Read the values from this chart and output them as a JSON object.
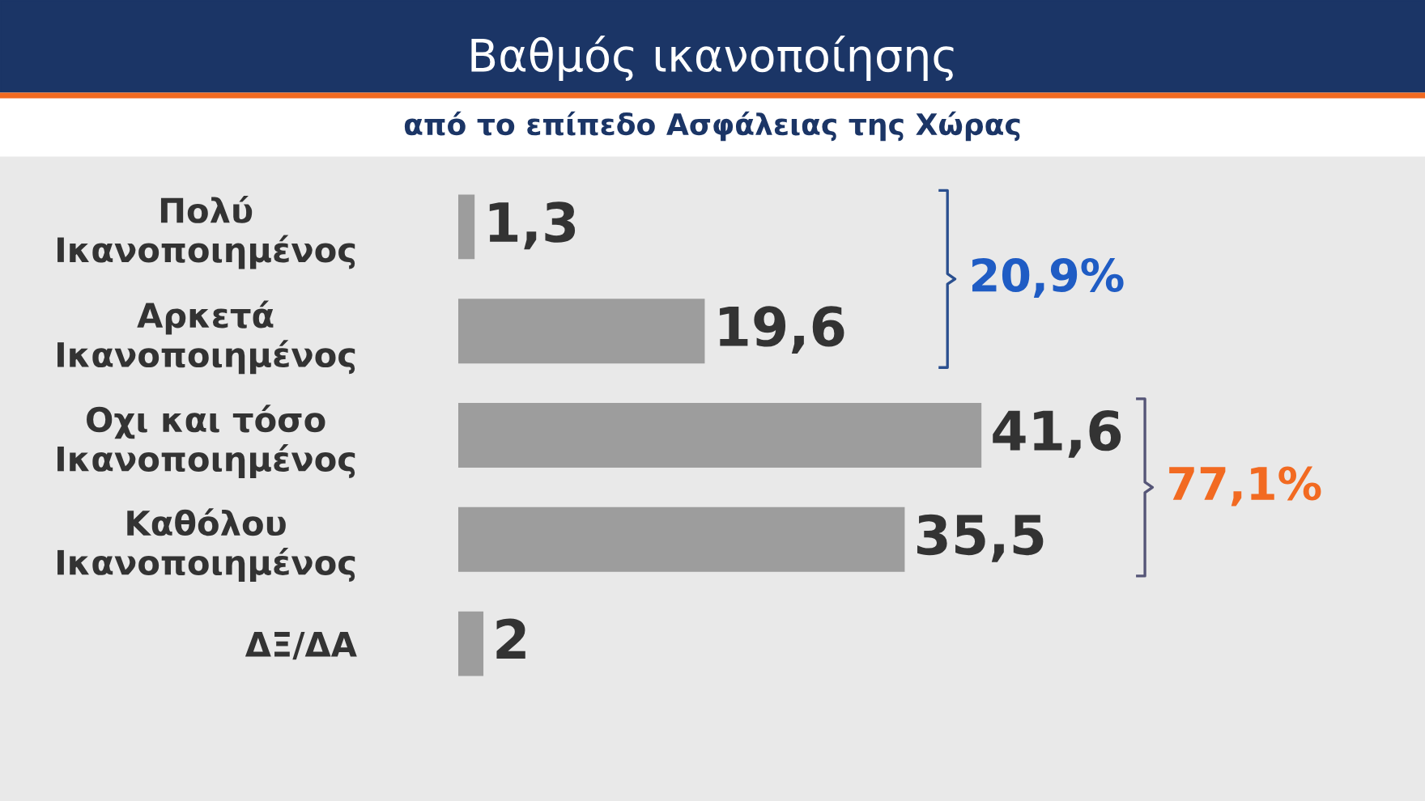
{
  "chart_data": {
    "type": "bar",
    "orientation": "horizontal",
    "title": "Βαθμός ικανοποίησης",
    "subtitle": "από το επίπεδο Ασφάλειας της Χώρας",
    "categories": [
      "Πολύ\nΙκανοποιημένος",
      "Αρκετά\nΙκανοποιημένος",
      "Οχι και τόσο\nΙκανοποιημένος",
      "Καθόλου\nΙκανοποιημένος",
      "ΔΞ/ΔΑ"
    ],
    "values": [
      1.3,
      19.6,
      41.6,
      35.5,
      2
    ],
    "value_labels": [
      "1,3",
      "19,6",
      "41,6",
      "35,5",
      "2"
    ],
    "color": "#9d9d9d",
    "annotations": [
      "20,9%",
      "77,1%"
    ],
    "grid": false,
    "legend": false
  }
}
